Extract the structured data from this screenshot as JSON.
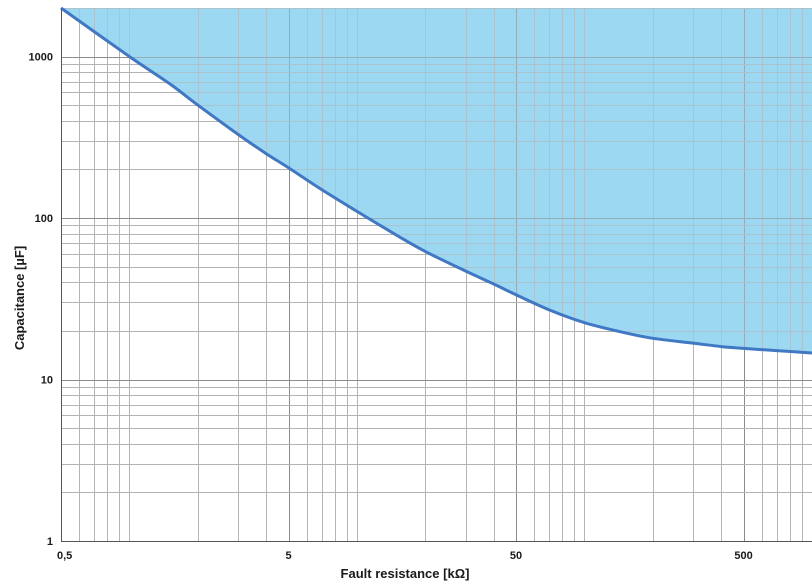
{
  "chart_data": {
    "type": "area",
    "xlabel": "Fault resistance [kΩ]",
    "ylabel": "Capacitance [µF]",
    "x_scale": "log",
    "y_scale": "log",
    "xlim": [
      0.5,
      1000
    ],
    "ylim": [
      1,
      2000
    ],
    "x_ticks": [
      {
        "value": 0.5,
        "label": "0,5"
      },
      {
        "value": 5,
        "label": "5"
      },
      {
        "value": 50,
        "label": "50"
      },
      {
        "value": 500,
        "label": "500"
      }
    ],
    "y_ticks": [
      {
        "value": 1,
        "label": "1"
      },
      {
        "value": 10,
        "label": "10"
      },
      {
        "value": 100,
        "label": "100"
      },
      {
        "value": 1000,
        "label": "1000"
      }
    ],
    "grid": true,
    "series": [
      {
        "x": [
          0.5,
          1,
          1.5,
          2,
          3,
          4,
          5,
          7,
          10,
          15,
          20,
          30,
          40,
          50,
          70,
          100,
          150,
          200,
          300,
          400,
          500,
          700,
          1000
        ],
        "y": [
          2000,
          1000,
          680,
          500,
          330,
          250,
          205,
          150,
          110,
          78,
          62,
          47,
          39,
          33.5,
          27,
          22.5,
          19.5,
          18,
          16.8,
          16,
          15.6,
          15.1,
          14.6
        ],
        "fill": "above",
        "fill_color": "#9dd8f2",
        "line_color": "#3f78c3"
      }
    ]
  }
}
